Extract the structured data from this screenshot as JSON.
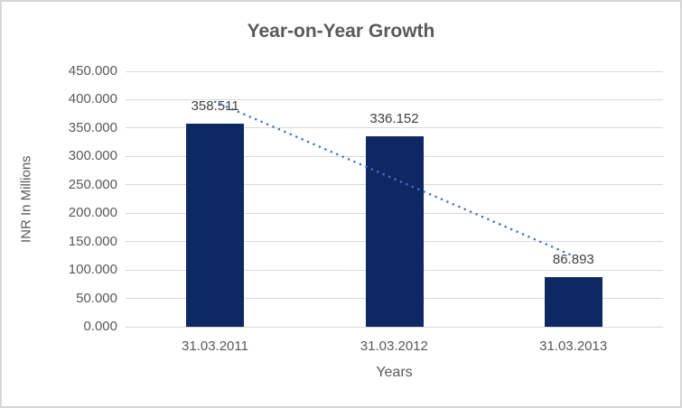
{
  "chart_data": {
    "type": "bar",
    "title": "Year-on-Year Growth",
    "xlabel": "Years",
    "ylabel": "INR In Millions",
    "categories": [
      "31.03.2011",
      "31.03.2012",
      "31.03.2013"
    ],
    "values": [
      358.511,
      336.152,
      86.893
    ],
    "value_labels": [
      "358.511",
      "336.152",
      "86.893"
    ],
    "ylim": [
      0,
      450
    ],
    "ytick_step": 50,
    "ytick_labels": [
      "0.000",
      "50.000",
      "100.000",
      "150.000",
      "200.000",
      "250.000",
      "300.000",
      "350.000",
      "400.000",
      "450.000"
    ],
    "grid": true,
    "legend": "none",
    "trendline": {
      "type": "linear",
      "style": "dotted",
      "color": "#4472c4"
    },
    "colors": {
      "bar": "#0e2864",
      "gridline": "#d9d9d9",
      "tick_text": "#595959",
      "data_label_text": "#3f3f3f",
      "title_text": "#595959",
      "frame_border": "#d6d6d6",
      "background": "#ffffff"
    }
  }
}
